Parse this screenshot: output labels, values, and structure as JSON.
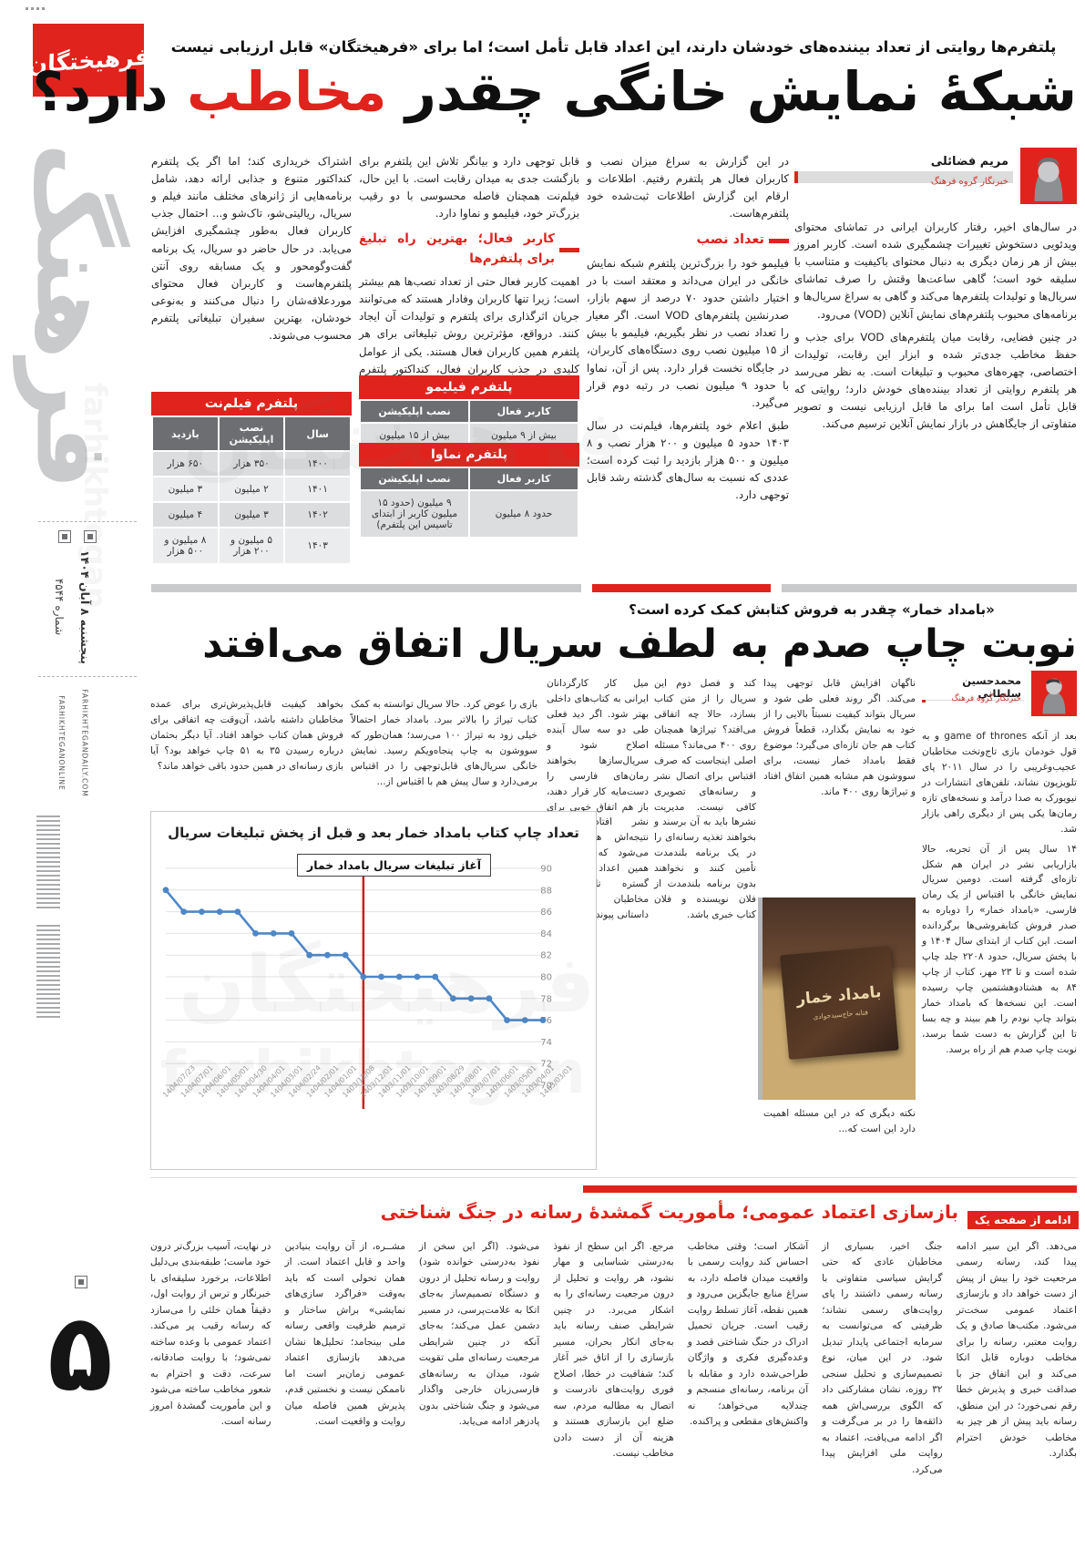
{
  "page": {
    "logo_title": "فرهیختگان",
    "section_label": "فرهنگ",
    "date": "پنجشنبه ۸ آبان ۱۴۰۴",
    "issue": "شماره ۴۵۴۴",
    "website_1": "FARHIKHTEGANDAILY.COM",
    "website_2": "FARHIKHTEGANONLINE",
    "page_number": "۵",
    "watermark_fa": "فرهیختگان",
    "watermark_en": "farhikhtegan"
  },
  "colors": {
    "accent_red": "#e0231c",
    "table_header_gray": "#6d6e71",
    "chart_line_blue": "#4d87c7",
    "chart_event_line_red": "#c4231b"
  },
  "article1": {
    "kicker": "پلتفرم‌ها روایتی از تعداد بیننده‌های خودشان دارند، این اعداد قابل تأمل است؛ اما برای «فرهیختگان» قابل ارزیابی نیست",
    "headline_pre": "شبکهٔ نمایش خانگی چقدر ",
    "headline_red": "مخاطب",
    "headline_post": " دارد؟",
    "author": {
      "name": "مریم فضائلی",
      "role": "خبرنگار گروه فرهنگ"
    },
    "subhead1": "تعداد نصب",
    "subhead2": "کاربر فعال؛ بهترین راه تبلیغ برای پلتفرم‌ها",
    "col1_paragraphs": [
      "در سال‌های اخیر، رفتار کاربران ایرانی در تماشای محتوای ویدئویی دستخوش تغییرات چشمگیری شده است. کاربر امروز بیش از هر زمان دیگری به دنبال محتوای باکیفیت و متناسب با سلیقه خود است؛ گاهی ساعت‌ها وقتش را صرف تماشای سریال‌ها و تولیدات پلتفرم‌ها می‌کند و گاهی به سراغ سریال‌ها و برنامه‌های محبوب پلتفرم‌های نمایش آنلاین (VOD) می‌رود.",
      "در چنین فضایی، رقابت میان پلتفرم‌های VOD برای جذب و حفظ مخاطب جدی‌تر شده و ابزار این رقابت، تولیدات اختصاصی، چهره‌های محبوب و تبلیغات است. به نظر می‌رسد هر پلتفرم روایتی از تعداد بیننده‌های خودش دارد؛ روایتی که قابل تأمل است اما برای ما قابل ارزیابی نیست و تصویر متفاوتی از جایگاهش در بازار نمایش آنلاین ترسیم می‌کند."
    ],
    "col2_intro": "در این گزارش به سراغ میزان نصب و کاربران فعال هر پلتفرم رفتیم. اطلاعات و ارقام این گزارش اطلاعات ثبت‌شده خود پلتفرم‌هاست.",
    "col2_paragraphs": [
      "فیلیمو خود را بزرگ‌ترین پلتفرم شبکه نمایش خانگی در ایران می‌داند و معتقد است با در اختیار داشتن حدود ۷۰ درصد از سهم بازار، صدرنشین پلتفرم‌های VOD است. اگر معیار را تعداد نصب در نظر بگیریم، فیلیمو با بیش از ۱۵ میلیون نصب روی دستگاه‌های کاربران، در جایگاه نخست قرار دارد. پس از آن، نماوا با حدود ۹ میلیون نصب در رتبه دوم قرار می‌گیرد.",
      "طبق اعلام خود پلتفرم‌ها، فیلم‌نت در سال ۱۴۰۳ حدود ۵ میلیون و ۲۰۰ هزار نصب و ۸ میلیون و ۵۰۰ هزار بازدید را ثبت کرده است؛ عددی که نسبت به سال‌های گذشته رشد قابل توجهی دارد."
    ],
    "col3_intro": "قابل توجهی دارد و بیانگر تلاش این پلتفرم برای بازگشت جدی به میدان رقابت است. با این حال، فیلم‌نت همچنان فاصله محسوسی با دو رقیب بزرگ‌تر خود، فیلیمو و نماوا دارد.",
    "col3_paragraphs": [
      "اهمیت کاربر فعال حتی از تعداد نصب‌ها هم بیشتر است؛ زیرا تنها کاربران وفادار هستند که می‌توانند جریان اثرگذاری برای پلتفرم و تولیدات آن ایجاد کنند. درواقع، مؤثرترین روش تبلیغاتی برای هر پلتفرم همین کاربران فعال هستند. یکی از عوامل کلیدی در جذب کاربران فعال، کنداکتور پلتفرم است. به‌ندرت پیش می‌آید کاربری برای محتوایی که کیفیت آن را نمی‌داند، وقت و هزینه صرف کند."
    ],
    "col4_paragraphs": [
      "اشتراک خریداری کند؛ اما اگر یک پلتفرم کنداکتور متنوع و جذابی ارائه دهد، شامل برنامه‌هایی از ژانرهای مختلف مانند فیلم و سریال، ریالیتی‌شو، تاک‌شو و... احتمال جذب کاربران فعال به‌طور چشمگیری افزایش می‌یابد. در حال حاضر دو سریال، یک برنامه گفت‌وگومحور و یک مسابقه روی آنتن پلتفرم‌هاست و کاربران فعال محتوای موردعلاقه‌شان را دنبال می‌کنند و به‌نوعی خودشان، بهترین سفیران تبلیغاتی پلتفرم محسوب می‌شوند."
    ],
    "tables": {
      "filmnet": {
        "title": "پلتفرم فیلم‌نت",
        "headers": [
          "سال",
          "نصب اپلیکیشن",
          "بازدید"
        ],
        "rows": [
          [
            "۱۴۰۰",
            "۳۵۰ هزار",
            "۶۵۰ هزار"
          ],
          [
            "۱۴۰۱",
            "۲ میلیون",
            "۳ میلیون"
          ],
          [
            "۱۴۰۲",
            "۳ میلیون",
            "۴ میلیون"
          ],
          [
            "۱۴۰۳",
            "۵ میلیون و ۲۰۰ هزار",
            "۸ میلیون و ۵۰۰ هزار"
          ]
        ]
      },
      "filimo": {
        "title": "پلتفرم فیلیمو",
        "headers": [
          "کاربر فعال",
          "نصب اپلیکیشن"
        ],
        "rows": [
          [
            "بیش از ۹ میلیون",
            "بیش از ۱۵ میلیون"
          ]
        ]
      },
      "namava": {
        "title": "پلتفرم نماوا",
        "headers": [
          "کاربر فعال",
          "نصب اپلیکیشن"
        ],
        "rows": [
          [
            "حدود ۸ میلیون",
            "۹ میلیون (حدود ۱۵ میلیون کاربر از ابتدای تاسیس این پلتفرم)"
          ]
        ]
      }
    }
  },
  "article2": {
    "kicker": "«بامداد خمار» چقدر به فروش کتابش کمک کرده است؟",
    "headline": "نوبت چاپ صدم به لطف سریال اتفاق می‌افتد",
    "author": {
      "name": "محمدحسین سلطانی",
      "role": "خبرنگار گروه فرهنگ"
    },
    "book": {
      "title": "بامداد خمار",
      "author": "فتانه حاج‌سیدجوادی"
    },
    "colA_paragraphs": [
      "بعد از آنکه game of thrones و به قول خودمان بازی تاج‌وتخت مخاطبان عجیب‌وغریبی را در سال ۲۰۱۱ پای تلویزیون نشاند، تلفن‌های انتشارات در نیویورک به صدا درآمد و نسخه‌های تازه رمان‌ها یکی پس از دیگری راهی بازار شد.",
      "۱۴ سال پس از آن تجربه، حالا بازاریابی نشر در ایران هم شکل تازه‌ای گرفته است. دومین سریال نمایش خانگی با اقتباس از یک رمان فارسی، «بامداد خمار» را دوباره به صدر فروش کتابفروشی‌ها برگردانده است. این کتاب از ابتدای سال ۱۴۰۴ و با پخش سریال، حدود ۲۲۰۸ جلد چاپ شده است و تا ۲۳ مهر، کتاب از چاپ ۸۴ به هشتادوهشتمین چاپ رسیده است. این نسخه‌ها که بامداد خمار بتواند چاپ نودم را هم ببیند و چه بسا تا این گزارش به دست شما برسد، نوبت چاپ صدم هم از راه برسد."
    ],
    "colB_top": "ناگهان افزایش قابل توجهی پیدا می‌کند. اگر روند فعلی طی شود و سریال بتواند کیفیت نسبتاً بالایی را از خود به نمایش بگذارد، قطعاً فروش کتاب هم جان تازه‌ای می‌گیرد؛ موضوع فقط بامداد خمار نیست، برای سووشون هم مشابه همین اتفاق افتاد و تیراژها روی ۴۰۰ ماند.",
    "colB_bottom": "نکته دیگری که در این مسئله اهمیت دارد این است که...",
    "colC_paragraphs": [
      "کند و فصل دوم این سریال را از متن کتاب بسازد، حالا چه اتفاقی می‌افتد؟ تیراژها همچنان روی ۴۰۰ می‌ماند؟ مسئله اصلی اینجاست که صرف اقتباس برای اتصال نشر و رسانه‌های تصویری کافی نیست. مدیریت نشرها باید به آن برسند و بخواهند تغذیه رسانه‌ای را در یک برنامه بلندمدت تأمین کنند و نخواهند بدون برنامه بلندمدت از فلان نویسنده و فلان کتاب خبری باشد."
    ],
    "colD_paragraphs": [
      "میل کار کارگردانان ایرانی به کتاب‌های داخلی بهتر شود. اگر دید فعلی طی دو سه سال آینده اصلاح شود و سریال‌سازها بخواهند رمان‌های فارسی را دست‌مایه کار قرار دهند، باز هم اتفاق خوبی برای نشر افتاده است؛ نتیجه‌اش همان چیزی می‌شود که امروز در همین اعداد می‌بینیم و گستره تازه‌ای از مخاطبان با ادبیات داستانی پیوند می‌خورد."
    ],
    "above_chart_right": "بازی را عوض کرد. حالا سریال توانسته به کمک کتاب تیراژ را بالاتر ببرد. بامداد خمار احتمالاً خیلی زود به تیراژ ۱۰۰ می‌رسد؛ همان‌طور که سووشون به چاپ پنجاه‌ویکم رسید. نمایش خانگی سریال‌های قابل‌توجهی را در اقتباس برمی‌دارد و سال پیش هم با اقتباس از...",
    "above_chart_left": "بخواهد کیفیت قابل‌پذیرش‌تری برای عمده مخاطبان داشته باشد، آن‌وقت چه اتفاقی برای فروش همان کتاب خواهد افتاد. آیا دیگر بحثمان درباره رسیدن ۳۵ به ۵۱ چاپ خواهد بود؟ آیا بازی رسانه‌ای در همین حدود باقی خواهد ماند؟"
  },
  "chart_data": {
    "type": "line",
    "title": "تعداد چاپ کتاب بامداد خمار بعد و قبل از پخش تبلیغات سریال",
    "annotation": "آغاز تبلیغات سریال بامداد خمار",
    "annotation_x": "1403/12/01",
    "categories": [
      "1404/07/23",
      "1404/07/01",
      "1404/06/01",
      "1404/05/01",
      "1404/04/30",
      "1404/04/01",
      "1404/03/01",
      "1404/02/24",
      "1404/02/01",
      "1404/01/01",
      "1403/12/08",
      "1403/12/01",
      "1403/11/01",
      "1403/10/01",
      "1403/09/01",
      "1403/08/29",
      "1403/08/01",
      "1403/07/01",
      "1403/06/01",
      "1403/05/01",
      "1403/04/01",
      "1403/03/01"
    ],
    "values": [
      88,
      86,
      86,
      86,
      86,
      84,
      84,
      84,
      82,
      82,
      82,
      80,
      80,
      80,
      80,
      80,
      78,
      78,
      78,
      76,
      76,
      76
    ],
    "ylim": [
      70,
      90
    ],
    "ytick_step": 2,
    "grid": true,
    "yaxis_side": "right",
    "line_color": "#4d87c7",
    "event_line_color": "#c4231b"
  },
  "article3": {
    "title": "بازسازی اعتماد عمومی؛ مأموریت گمشدهٔ رسانه در جنگ شناختی",
    "continued_label": "ادامه از صفحه یک",
    "columns": [
      "می‌دهد. اگر این سیر ادامه پیدا کند، رسانه رسمی مرجعیت خود را بیش از پیش از دست خواهد داد و بازسازی اعتماد عمومی سخت‌تر می‌شود. مکتب‌ها صادق و یک روایت معتبر، رسانه را برای مخاطب دوباره قابل اتکا می‌کند و این اتفاق جز با صداقت خبری و پذیرش خطا رقم نمی‌خورد؛ در این منطق، رسانه باید پیش از هر چیز به مخاطب خودش احترام بگذارد.",
      "جنگ اخیر، بسیاری از مخاطبان عادی که حتی گرایش سیاسی متفاوتی با رسانه رسمی داشتند را پای روایت‌های رسمی نشاند؛ ظرفیتی که می‌توانست به سرمایه اجتماعی پایدار تبدیل شود. در این میان، نوع تصمیم‌سازی و تحلیل سنجی ۳۲ روزه، نشان مشارکتی داد که الگوی بررسی‌اش همه ذائقه‌ها را در بر می‌گرفت و اگر ادامه می‌یافت، اعتماد به روایت ملی افزایش پیدا می‌کرد.",
      "آشکار است؛ وقتی مخاطب احساس کند روایت رسمی با واقعیت میدان فاصله دارد، به سراغ منابع جایگزین می‌رود و همین نقطه، آغاز تسلط روایت رقیب است. جریان تحمیل ادراک در جنگ شناختی قصد و وعده‌گیری فکری و واژگان طراحی‌شده دارد و مقابله با آن برنامه، رسانه‌ای منسجم و چندلایه می‌خواهد؛ نه واکنش‌های مقطعی و پراکنده.",
      "مرجع. اگر این سطح از نفوذ به‌درستی شناسایی و مهار نشود، هر روایت و تحلیل از درون مرجعیت رسانه‌ای را به اشکار می‌برد. در چنین شرایطی صنف رسانه باید به‌جای انکار بحران، مسیر بازسازی را از اتاق خبر آغاز کند؛ شفافیت در خطا، اصلاح فوری روایت‌های نادرست و اتصال به مطالبه مردم، سه ضلع این بازسازی هستند و هزینه آن از دست دادن مخاطب نیست.",
      "می‌شود. (اگر این سخن از نفوذ به‌درستی خوانده شود) روایت و رسانه تحلیل از درون و دستگاه تصمیم‌ساز به‌جای اتکا به علامت‌پرسی، در مسیر دشمن عمل می‌کند؛ به‌جای آنکه در چنین شرایطی مرجعیت رسانه‌ای ملی تقویت شود، میدان به رسانه‌های فارسی‌زبان خارجی واگذار می‌شود و جنگ شناختی بدون پادزهر ادامه می‌یابد.",
      "مشــره، از آن روایت بنیادین واحد و قابل اعتماد است. از همان تحولی است که باید به‌وقت «فراگرد سازی‌های نمایشی» براش ساختار و ترمیم ظرفیت واقعی رسانه ملی بینجامد؛ تحلیل‌ها نشان می‌دهد بازسازی اعتماد عمومی زمان‌بر است اما ناممکن نیست و نخستین قدم، پذیرش همین فاصله میان روایت و واقعیت است.",
      "در نهایت، آسیب بزرگ‌تر درون خود ماست؛ طبقه‌بندی بی‌دلیل اطلاعات، برخورد سلیقه‌ای با خبرنگار و ترس از روایت اول، دقیقاً همان خلئی را می‌سازد که رسانه رقیب پر می‌کند. اعتماد عمومی با وعده ساخته نمی‌شود؛ با روایت صادقانه، سرعت، دقت و احترام به شعور مخاطب ساخته می‌شود و این مأموریت گمشدهٔ امروز رسانه است."
    ]
  }
}
